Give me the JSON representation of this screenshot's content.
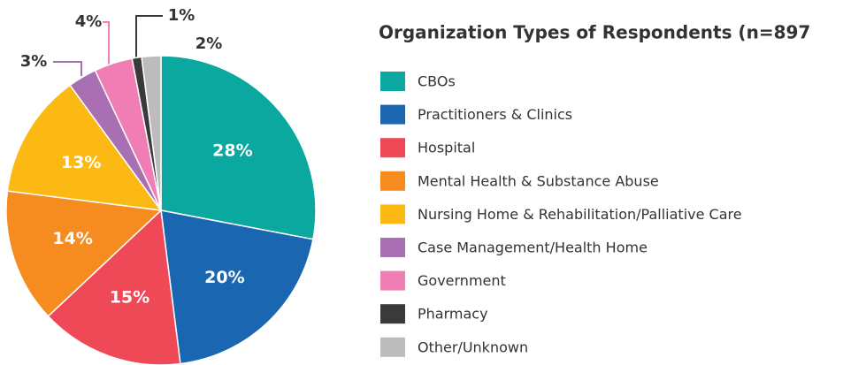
{
  "chart_data": {
    "type": "pie",
    "title": "Organization Types of Respondents (n=897",
    "categories": [
      "CBOs",
      "Practitioners & Clinics",
      "Hospital",
      "Mental Health & Substance Abuse",
      "Nursing Home & Rehabilitation/Palliative Care",
      "Case Management/Health Home",
      "Government",
      "Pharmacy",
      "Other/Unknown"
    ],
    "values": [
      28,
      20,
      15,
      14,
      13,
      3,
      4,
      1,
      2
    ],
    "value_labels": [
      "28%",
      "20%",
      "15%",
      "14%",
      "13%",
      "3%",
      "4%",
      "1%",
      "2%"
    ],
    "colors": [
      "#0aa89e",
      "#1a66b0",
      "#ef4856",
      "#f68b1f",
      "#fdb913",
      "#a86fb3",
      "#f07eb4",
      "#3a3a3a",
      "#bcbcbc"
    ],
    "legend": "right"
  }
}
